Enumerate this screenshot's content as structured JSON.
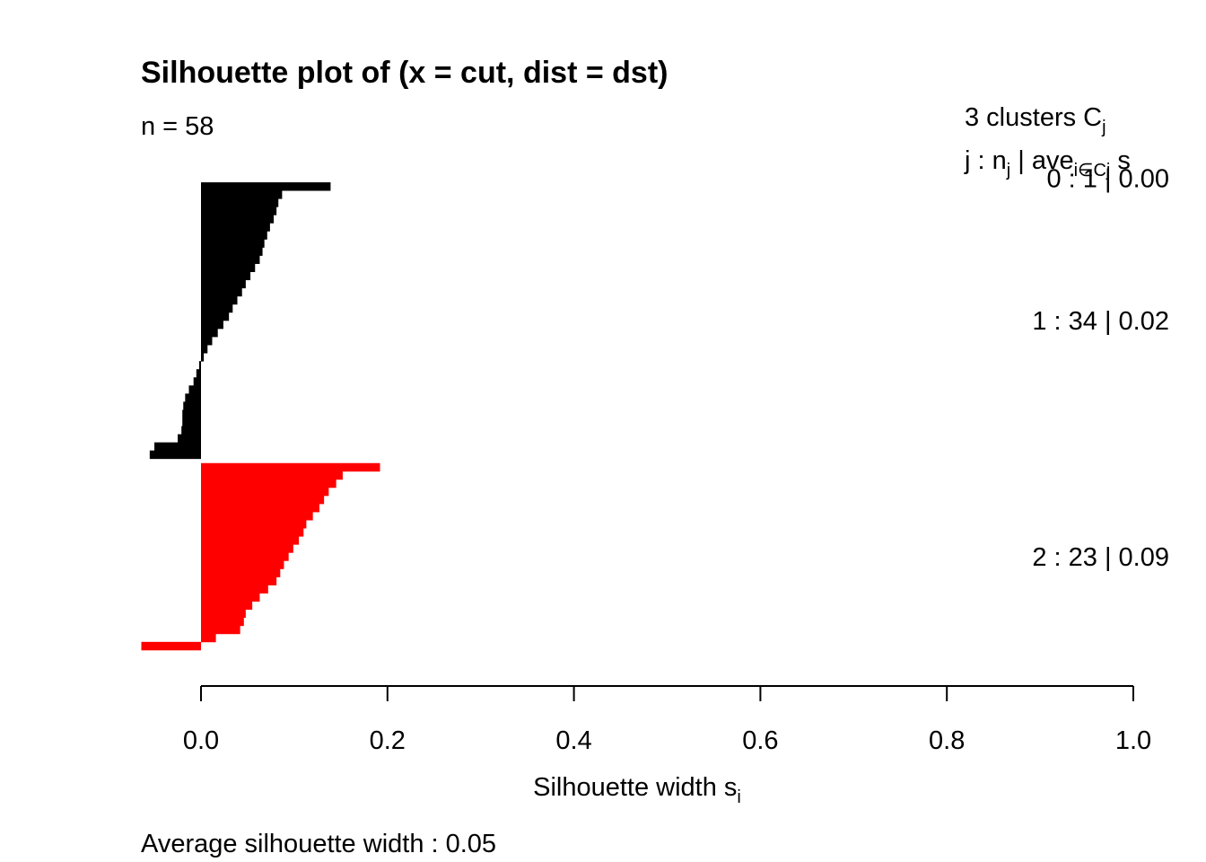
{
  "chart_data": {
    "type": "bar",
    "orientation": "horizontal",
    "title": "Silhouette plot of (x = cut, dist = dst)",
    "subtitle": "n = 58",
    "xlabel": "Silhouette width s",
    "xlabel_sub": "i",
    "xlim": [
      0,
      1
    ],
    "xticks": [
      "0.0",
      "0.2",
      "0.4",
      "0.6",
      "0.8",
      "1.0"
    ],
    "footer": "Average silhouette width :  0.05",
    "legend_header": {
      "line1": "3  clusters  C",
      "line1_sub": "j",
      "line2": "j :  n",
      "line2_sub": "j",
      "line2_rest": " | ave",
      "line2_sub2": "i∈Cj",
      "line2_end": "  s"
    },
    "clusters": [
      {
        "id": 0,
        "n": 1,
        "ave": "0.00",
        "label": "0 :   1  |  0.00",
        "color": "#000000",
        "values": [
          0.0
        ]
      },
      {
        "id": 1,
        "n": 34,
        "ave": "0.02",
        "label": "1 :   34  |  0.02",
        "color": "#000000",
        "values": [
          0.139,
          0.087,
          0.083,
          0.081,
          0.078,
          0.074,
          0.071,
          0.068,
          0.066,
          0.063,
          0.058,
          0.053,
          0.048,
          0.044,
          0.039,
          0.034,
          0.03,
          0.024,
          0.018,
          0.012,
          0.007,
          0.003,
          -0.002,
          -0.005,
          -0.008,
          -0.013,
          -0.017,
          -0.019,
          -0.02,
          -0.02,
          -0.021,
          -0.025,
          -0.05,
          -0.055
        ]
      },
      {
        "id": 2,
        "n": 23,
        "ave": "0.09",
        "label": "2 :   23  |  0.09",
        "color": "#ff0000",
        "values": [
          0.192,
          0.152,
          0.145,
          0.137,
          0.132,
          0.127,
          0.12,
          0.113,
          0.11,
          0.105,
          0.099,
          0.094,
          0.089,
          0.085,
          0.081,
          0.072,
          0.063,
          0.055,
          0.048,
          0.046,
          0.042,
          0.016,
          -0.064
        ]
      }
    ]
  }
}
